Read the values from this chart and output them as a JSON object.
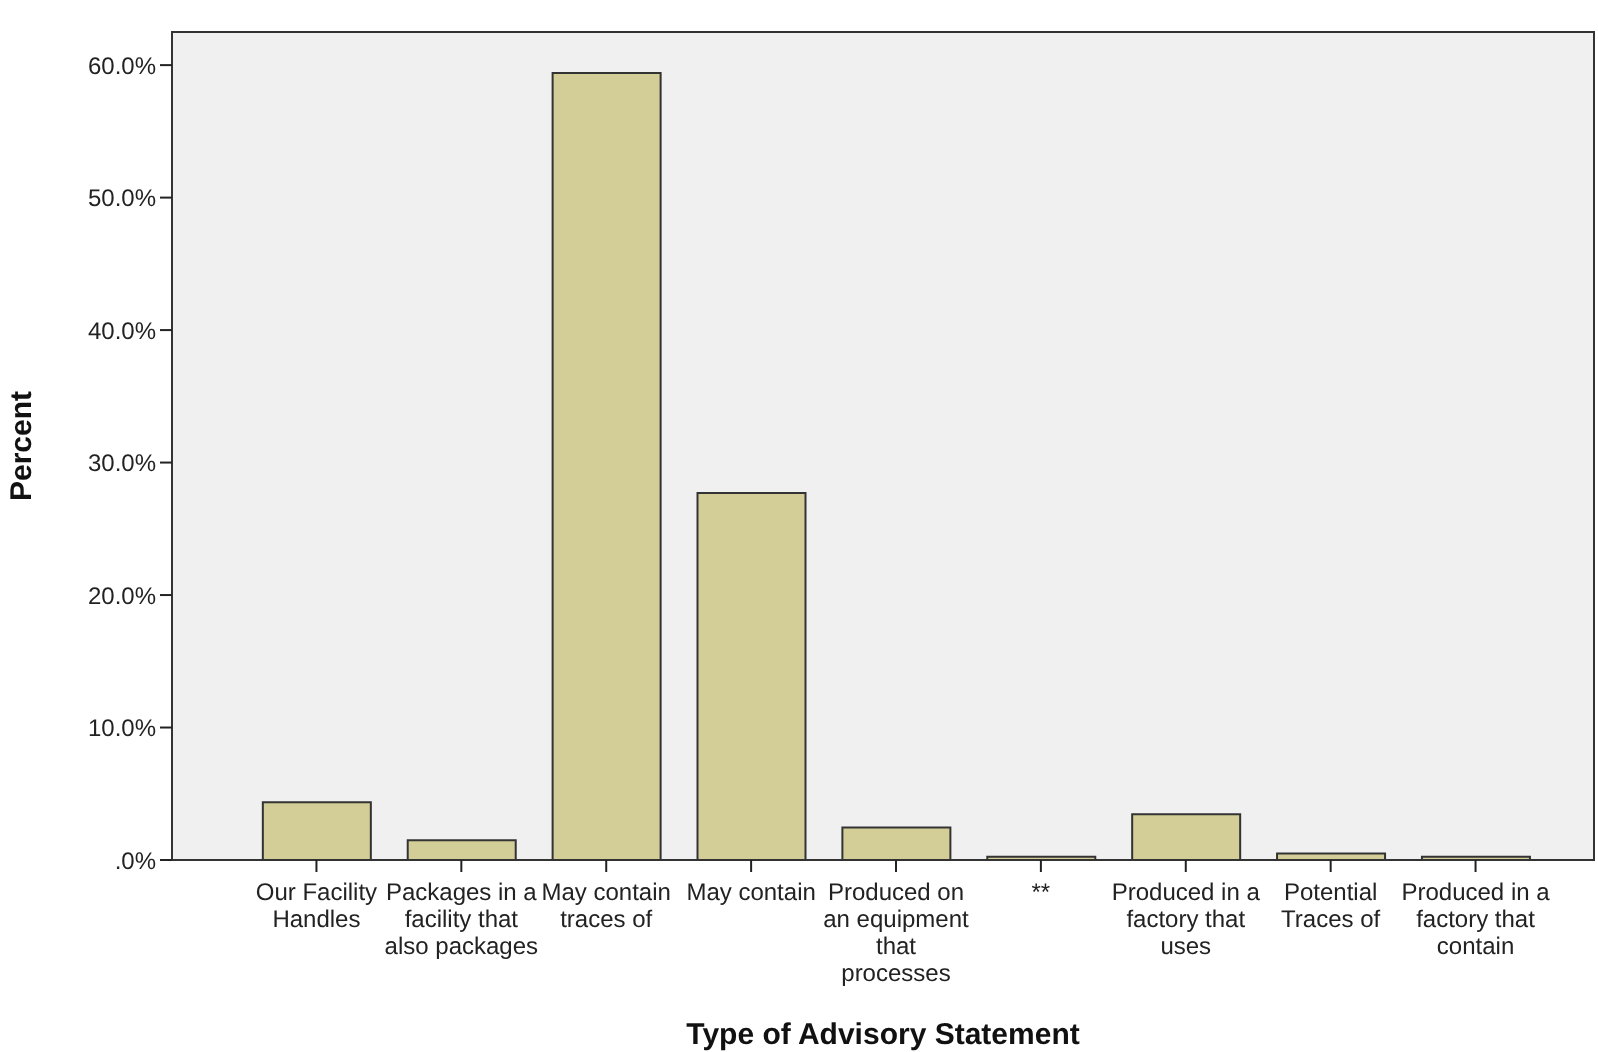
{
  "chart_data": {
    "type": "bar",
    "xlabel": "Type of Advisory Statement",
    "ylabel": "Percent",
    "categories": [
      "Our Facility Handles",
      "Packages in a facility that also packages",
      "May contain traces of",
      "May contain",
      "Produced on an equipment that processes",
      "**",
      "Produced in a factory that uses",
      "Potential Traces of",
      "Produced in a factory that contain"
    ],
    "values": [
      4.35,
      1.5,
      59.4,
      27.7,
      2.45,
      0.25,
      3.45,
      0.5,
      0.25
    ],
    "color": "#d3ce98",
    "ylim": [
      0,
      62.5
    ],
    "yticks": [
      {
        "value": 0,
        "label": ".0%"
      },
      {
        "value": 10,
        "label": "10.0%"
      },
      {
        "value": 20,
        "label": "20.0%"
      },
      {
        "value": 30,
        "label": "30.0%"
      },
      {
        "value": 40,
        "label": "40.0%"
      },
      {
        "value": 50,
        "label": "50.0%"
      },
      {
        "value": 60,
        "label": "60.0%"
      }
    ]
  }
}
